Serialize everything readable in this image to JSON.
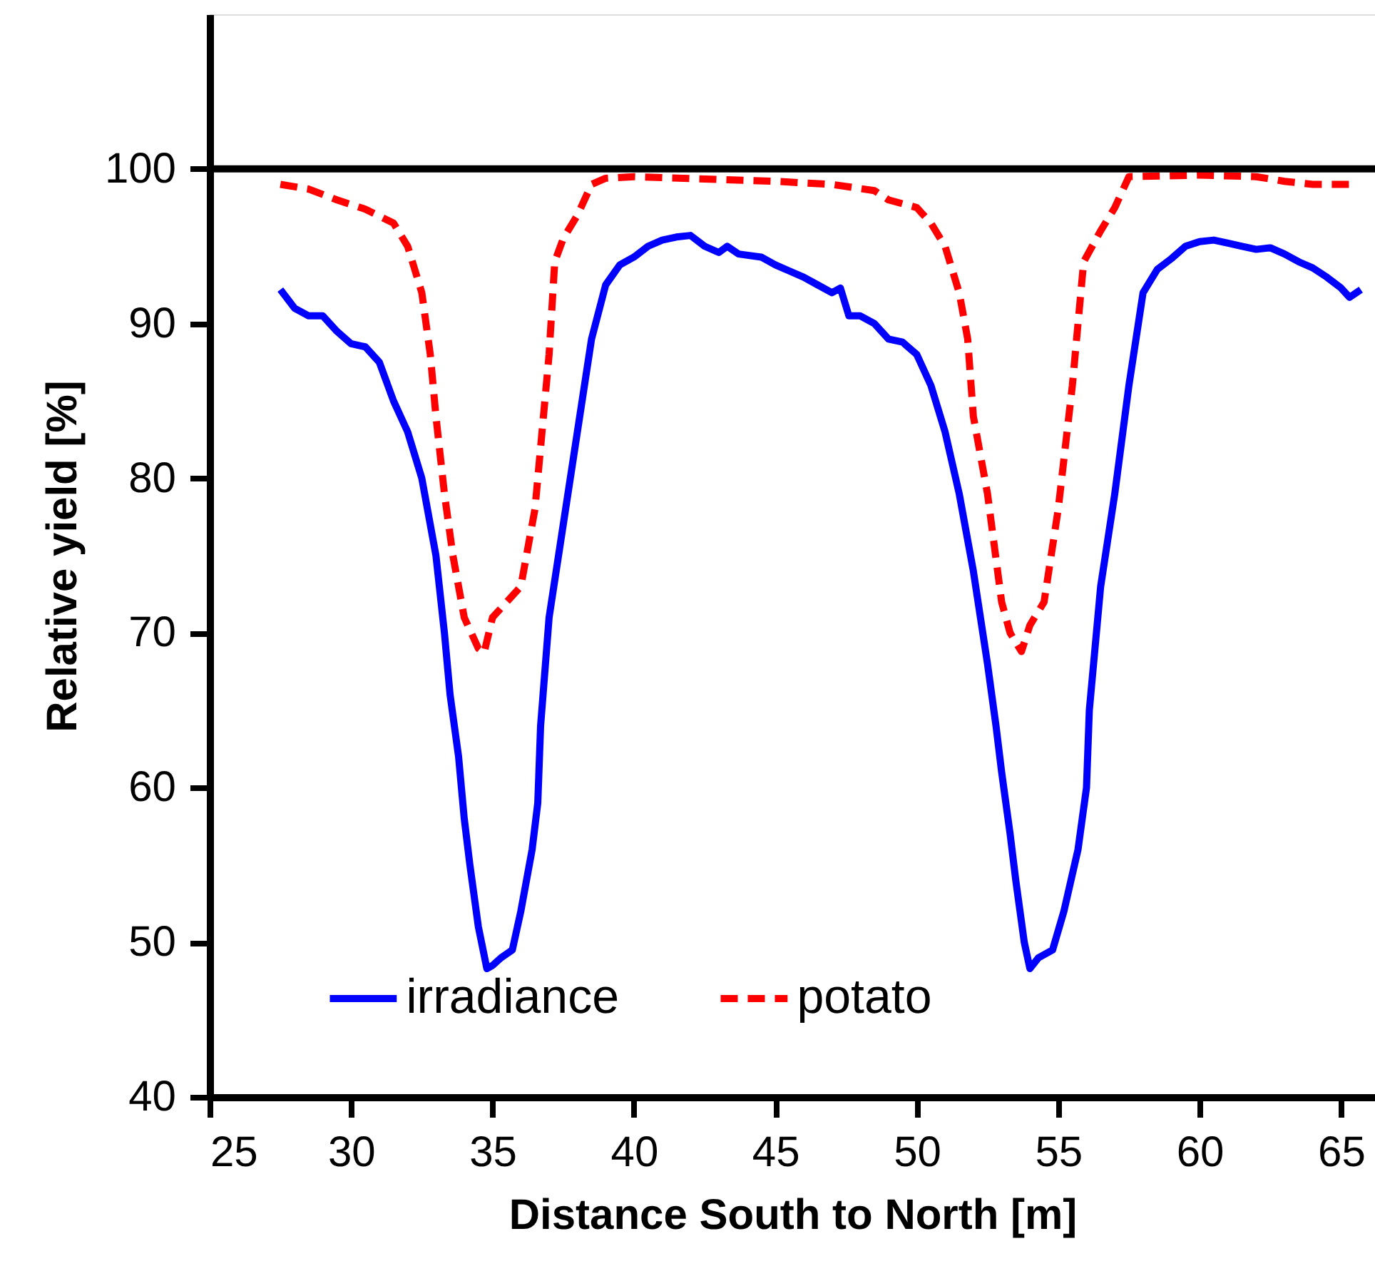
{
  "chart_data": {
    "type": "line",
    "xlabel": "Distance South to North [m]",
    "ylabel": "Relative yield [%]",
    "xlim": [
      25,
      66.2
    ],
    "xticks": [
      25,
      30,
      35,
      40,
      45,
      50,
      55,
      60,
      65
    ],
    "ylim": [
      40,
      110
    ],
    "yticks": [
      40,
      50,
      60,
      70,
      80,
      90,
      100
    ],
    "grid": false,
    "legend": "bottom",
    "marker": "none",
    "ref_lines": [
      {
        "axis": "y",
        "value": 100,
        "color": "#000000",
        "line_style": "solid"
      }
    ],
    "series": [
      {
        "name": "irradiance",
        "color": "#0000ff",
        "line_style": "solid",
        "x": [
          27.5,
          28,
          28.5,
          29,
          29.5,
          30,
          30.5,
          31,
          31.5,
          32,
          32.5,
          33,
          33.3,
          33.5,
          33.8,
          34,
          34.2,
          34.5,
          34.8,
          35,
          35.3,
          35.7,
          36,
          36.4,
          36.6,
          36.7,
          37,
          37.5,
          38,
          38.5,
          39,
          39.5,
          40,
          40.5,
          41,
          41.5,
          42,
          42.5,
          43,
          43.3,
          43.7,
          44.5,
          45,
          45.5,
          46,
          46.5,
          47,
          47.3,
          47.6,
          48,
          48.5,
          49,
          49.5,
          50,
          50.5,
          51,
          51.5,
          52,
          52.5,
          52.8,
          53,
          53.3,
          53.5,
          53.8,
          54,
          54.3,
          54.8,
          55.2,
          55.7,
          56,
          56.1,
          56.5,
          57,
          57.5,
          58,
          58.5,
          59,
          59.5,
          60,
          60.5,
          61,
          61.5,
          62,
          62.5,
          63,
          63.5,
          64,
          64.5,
          65,
          65.3,
          65.7
        ],
        "values": [
          92.2,
          91,
          90.5,
          90.5,
          89.5,
          88.7,
          88.5,
          87.5,
          85,
          83,
          80,
          75,
          70,
          66,
          62,
          58,
          55,
          51,
          48.3,
          48.5,
          49,
          49.5,
          52,
          56,
          59,
          64,
          71,
          77,
          83,
          89,
          92.5,
          93.8,
          94.3,
          95,
          95.4,
          95.6,
          95.7,
          95,
          94.6,
          95,
          94.5,
          94.3,
          93.8,
          93.4,
          93,
          92.5,
          92,
          92.3,
          90.5,
          90.5,
          90,
          89,
          88.8,
          88,
          86,
          83,
          79,
          74,
          68,
          64,
          61,
          57,
          54,
          50,
          48.3,
          49,
          49.5,
          52,
          56,
          60,
          65,
          73,
          79,
          86,
          92,
          93.5,
          94.2,
          95,
          95.3,
          95.4,
          95.2,
          95,
          94.8,
          94.9,
          94.5,
          94,
          93.6,
          93,
          92.3,
          91.7,
          92.2
        ]
      },
      {
        "name": "potato",
        "color": "#ff0000",
        "line_style": "dashed",
        "x": [
          27.5,
          28.5,
          29.5,
          30.5,
          31.5,
          32,
          32.5,
          32.8,
          33,
          33.3,
          33.6,
          34,
          34.5,
          34.7,
          35,
          35.5,
          36,
          36.5,
          37,
          37.2,
          37.5,
          38,
          38.5,
          39,
          40,
          45,
          47,
          48.5,
          49,
          50,
          50.5,
          51,
          51.5,
          51.8,
          52,
          52.5,
          53,
          53.3,
          53.7,
          54,
          54.5,
          55,
          55.5,
          55.9,
          56.5,
          57,
          57.5,
          60,
          62,
          63,
          64,
          65.5
        ],
        "values": [
          99,
          98.7,
          98,
          97.4,
          96.5,
          95,
          92,
          88,
          84,
          79,
          75,
          71,
          69,
          68.7,
          71,
          72,
          73,
          78,
          88,
          94,
          95.5,
          97,
          99,
          99.4,
          99.5,
          99.2,
          99,
          98.6,
          98,
          97.5,
          96.5,
          95,
          92,
          89,
          84,
          79,
          72,
          70,
          68.8,
          70.5,
          72,
          78,
          86,
          94,
          96,
          97.5,
          99.5,
          99.6,
          99.5,
          99.2,
          99,
          99
        ]
      }
    ]
  }
}
